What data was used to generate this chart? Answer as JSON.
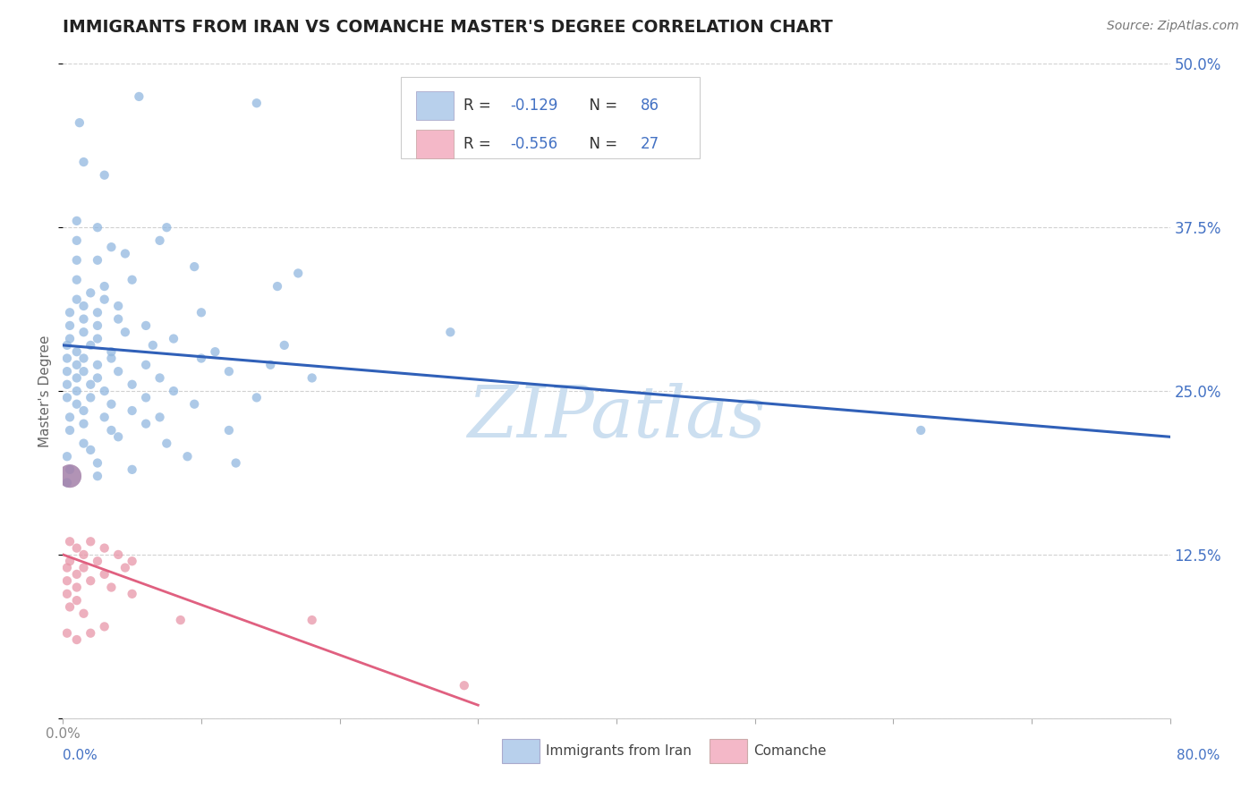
{
  "title": "IMMIGRANTS FROM IRAN VS COMANCHE MASTER'S DEGREE CORRELATION CHART",
  "source": "Source: ZipAtlas.com",
  "ylabel": "Master's Degree",
  "xlim": [
    0,
    80
  ],
  "ylim": [
    0,
    50
  ],
  "yticks": [
    0,
    12.5,
    25.0,
    37.5,
    50.0
  ],
  "xtick_positions": [
    0,
    10,
    20,
    30,
    40,
    50,
    60,
    70,
    80
  ],
  "blue_scatter": [
    [
      1.2,
      45.5
    ],
    [
      5.5,
      47.5
    ],
    [
      14.0,
      47.0
    ],
    [
      1.5,
      42.5
    ],
    [
      3.0,
      41.5
    ],
    [
      1.0,
      38.0
    ],
    [
      2.5,
      37.5
    ],
    [
      7.5,
      37.5
    ],
    [
      1.0,
      36.5
    ],
    [
      3.5,
      36.0
    ],
    [
      7.0,
      36.5
    ],
    [
      1.0,
      35.0
    ],
    [
      2.5,
      35.0
    ],
    [
      4.5,
      35.5
    ],
    [
      9.5,
      34.5
    ],
    [
      17.0,
      34.0
    ],
    [
      1.0,
      33.5
    ],
    [
      3.0,
      33.0
    ],
    [
      5.0,
      33.5
    ],
    [
      15.5,
      33.0
    ],
    [
      1.0,
      32.0
    ],
    [
      2.0,
      32.5
    ],
    [
      3.0,
      32.0
    ],
    [
      0.5,
      31.0
    ],
    [
      1.5,
      31.5
    ],
    [
      2.5,
      31.0
    ],
    [
      4.0,
      31.5
    ],
    [
      10.0,
      31.0
    ],
    [
      0.5,
      30.0
    ],
    [
      1.5,
      30.5
    ],
    [
      2.5,
      30.0
    ],
    [
      4.0,
      30.5
    ],
    [
      6.0,
      30.0
    ],
    [
      0.5,
      29.0
    ],
    [
      1.5,
      29.5
    ],
    [
      2.5,
      29.0
    ],
    [
      4.5,
      29.5
    ],
    [
      8.0,
      29.0
    ],
    [
      28.0,
      29.5
    ],
    [
      0.3,
      28.5
    ],
    [
      1.0,
      28.0
    ],
    [
      2.0,
      28.5
    ],
    [
      3.5,
      28.0
    ],
    [
      6.5,
      28.5
    ],
    [
      11.0,
      28.0
    ],
    [
      16.0,
      28.5
    ],
    [
      0.3,
      27.5
    ],
    [
      1.0,
      27.0
    ],
    [
      1.5,
      27.5
    ],
    [
      2.5,
      27.0
    ],
    [
      3.5,
      27.5
    ],
    [
      6.0,
      27.0
    ],
    [
      10.0,
      27.5
    ],
    [
      15.0,
      27.0
    ],
    [
      0.3,
      26.5
    ],
    [
      1.0,
      26.0
    ],
    [
      1.5,
      26.5
    ],
    [
      2.5,
      26.0
    ],
    [
      4.0,
      26.5
    ],
    [
      7.0,
      26.0
    ],
    [
      12.0,
      26.5
    ],
    [
      18.0,
      26.0
    ],
    [
      0.3,
      25.5
    ],
    [
      1.0,
      25.0
    ],
    [
      2.0,
      25.5
    ],
    [
      3.0,
      25.0
    ],
    [
      5.0,
      25.5
    ],
    [
      8.0,
      25.0
    ],
    [
      0.3,
      24.5
    ],
    [
      1.0,
      24.0
    ],
    [
      2.0,
      24.5
    ],
    [
      3.5,
      24.0
    ],
    [
      6.0,
      24.5
    ],
    [
      9.5,
      24.0
    ],
    [
      14.0,
      24.5
    ],
    [
      0.5,
      23.0
    ],
    [
      1.5,
      23.5
    ],
    [
      3.0,
      23.0
    ],
    [
      5.0,
      23.5
    ],
    [
      7.0,
      23.0
    ],
    [
      0.5,
      22.0
    ],
    [
      1.5,
      22.5
    ],
    [
      3.5,
      22.0
    ],
    [
      6.0,
      22.5
    ],
    [
      12.0,
      22.0
    ],
    [
      1.5,
      21.0
    ],
    [
      4.0,
      21.5
    ],
    [
      7.5,
      21.0
    ],
    [
      0.3,
      20.0
    ],
    [
      2.0,
      20.5
    ],
    [
      9.0,
      20.0
    ],
    [
      0.5,
      19.0
    ],
    [
      2.5,
      19.5
    ],
    [
      5.0,
      19.0
    ],
    [
      12.5,
      19.5
    ],
    [
      0.3,
      18.0
    ],
    [
      2.5,
      18.5
    ],
    [
      62.0,
      22.0
    ]
  ],
  "blue_scatter_large": [
    [
      0.5,
      18.5
    ]
  ],
  "pink_scatter": [
    [
      0.5,
      13.5
    ],
    [
      1.0,
      13.0
    ],
    [
      2.0,
      13.5
    ],
    [
      3.0,
      13.0
    ],
    [
      0.5,
      12.0
    ],
    [
      1.5,
      12.5
    ],
    [
      2.5,
      12.0
    ],
    [
      4.0,
      12.5
    ],
    [
      5.0,
      12.0
    ],
    [
      0.3,
      11.5
    ],
    [
      1.0,
      11.0
    ],
    [
      1.5,
      11.5
    ],
    [
      3.0,
      11.0
    ],
    [
      4.5,
      11.5
    ],
    [
      0.3,
      10.5
    ],
    [
      1.0,
      10.0
    ],
    [
      2.0,
      10.5
    ],
    [
      3.5,
      10.0
    ],
    [
      0.3,
      9.5
    ],
    [
      1.0,
      9.0
    ],
    [
      5.0,
      9.5
    ],
    [
      0.5,
      8.5
    ],
    [
      1.5,
      8.0
    ],
    [
      3.0,
      7.0
    ],
    [
      8.5,
      7.5
    ],
    [
      0.3,
      6.5
    ],
    [
      1.0,
      6.0
    ],
    [
      2.0,
      6.5
    ],
    [
      18.0,
      7.5
    ],
    [
      29.0,
      2.5
    ]
  ],
  "pink_scatter_large": [
    [
      0.5,
      18.5
    ]
  ],
  "blue_line_x": [
    0,
    80
  ],
  "blue_line_y": [
    28.5,
    21.5
  ],
  "pink_line_x": [
    0,
    30
  ],
  "pink_line_y": [
    12.5,
    1.0
  ],
  "scatter_color_blue": "#92b8e0",
  "scatter_color_pink": "#e896a8",
  "line_color_blue": "#3060b8",
  "line_color_pink": "#e06080",
  "legend_box_blue": "#b8d0ec",
  "legend_box_pink": "#f4b8c8",
  "watermark": "ZIPatlas",
  "watermark_color": "#ccdff0"
}
